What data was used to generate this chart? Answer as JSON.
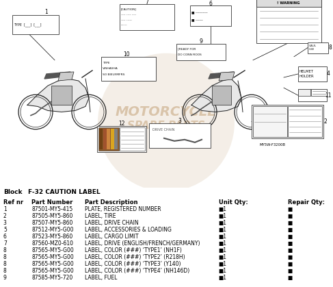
{
  "title": "F-32 CAUTION LABEL",
  "block_label": "Block",
  "table_headers": [
    "Ref nr",
    "Part Number",
    "Part Description",
    "Unit Qty:",
    "Repair Qty:"
  ],
  "rows": [
    [
      "1",
      "87501-MY5-415",
      "PLATE, REGISTERED NUMBER",
      "■1",
      "■"
    ],
    [
      "2",
      "87505-MY5-860",
      "LABEL, TIRE",
      "■1",
      "■"
    ],
    [
      "3",
      "87507-MY5-860",
      "LABEL, DRIVE CHAIN",
      "■1",
      "■"
    ],
    [
      "5",
      "87512-MY5-G00",
      "LABEL, ACCESSORIES & LOADING",
      "■1",
      "■"
    ],
    [
      "6",
      "87523-MY5-860",
      "LABEL, CARGO LIMIT",
      "■1",
      "■"
    ],
    [
      "7",
      "87560-MZ0-610",
      "LABEL, DRIVE (ENGLISH/FRENCH/GERMANY)",
      "■1",
      "■"
    ],
    [
      "8",
      "87565-MY5-G00",
      "LABEL, COLOR (###) ‘TYPE1’ (NH1F)",
      "■1",
      "■"
    ],
    [
      "8",
      "87565-MY5-G00",
      "LABEL, COLOR (###) ‘TYPE2’ (R218H)",
      "■1",
      "■"
    ],
    [
      "8",
      "87565-MY5-G00",
      "LABEL, COLOR (###) ‘TYPE3’ (Y140)",
      "■1",
      "■"
    ],
    [
      "8",
      "87565-MY5-G00",
      "LABEL, COLOR (###) ‘TYPE4’ (NH146D)",
      "■1",
      "■"
    ],
    [
      "9",
      "87585-MY5-720",
      "LABEL, FUEL",
      "■1",
      "■"
    ]
  ],
  "diagram_bg": "#f2f2f2",
  "watermark_color": "#c8a882",
  "line_color": "#222222",
  "label_bg": "#ffffff",
  "label_edge": "#333333"
}
